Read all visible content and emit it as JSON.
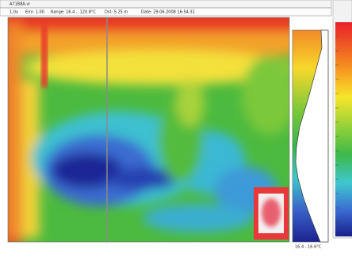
{
  "window": {
    "title": "A71B8A.vi"
  },
  "info_bar": {
    "zoom": "1.0x",
    "emissivity": "Emi: 1.00",
    "range": "Range: 16.4 .. 120.8°C",
    "distance": "Dst: 5.25 m",
    "date": "Date: 29.06.2008 16:54:31"
  },
  "histogram": {
    "label": "16.4 - 16.6°C"
  }
}
